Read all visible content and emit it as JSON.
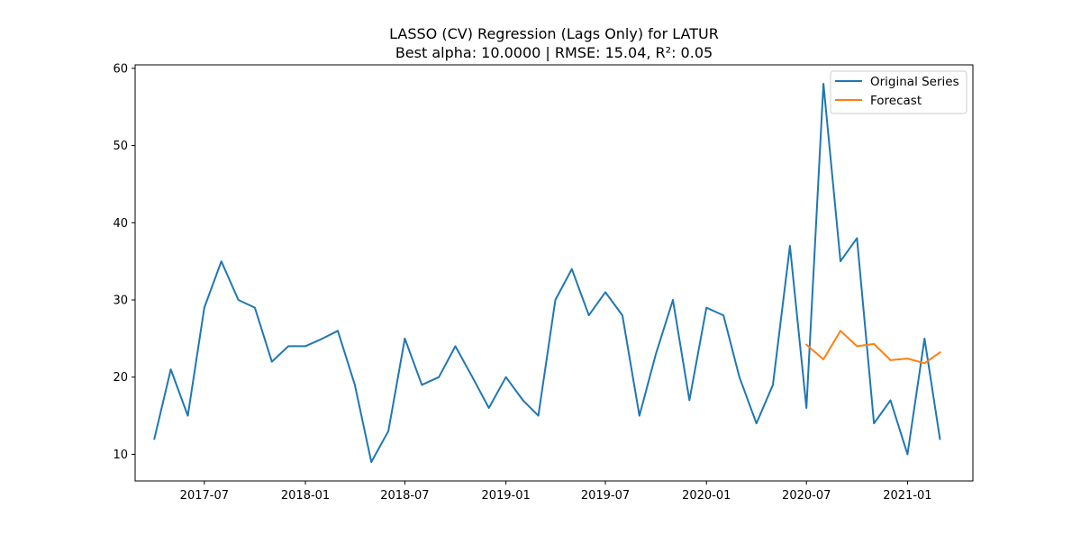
{
  "chart_data": {
    "type": "line",
    "title": "LASSO (CV) Regression (Lags Only) for LATUR",
    "subtitle": "Best alpha: 10.0000 | RMSE: 15.04, R²: 0.05",
    "xlabel": "",
    "ylabel": "",
    "ylim": [
      6.55,
      60.45
    ],
    "xlim": [
      "2017-02-25",
      "2021-04-30"
    ],
    "grid": false,
    "legend_position": "top-right",
    "x_ticks": [
      "2017-07",
      "2018-01",
      "2018-07",
      "2019-01",
      "2019-07",
      "2020-01",
      "2020-07",
      "2021-01"
    ],
    "y_ticks": [
      10,
      20,
      30,
      40,
      50,
      60
    ],
    "series": [
      {
        "name": "Original Series",
        "color": "#1f77b4",
        "x": [
          "2017-04",
          "2017-05",
          "2017-06",
          "2017-07",
          "2017-08",
          "2017-09",
          "2017-10",
          "2017-11",
          "2017-12",
          "2018-01",
          "2018-02",
          "2018-03",
          "2018-04",
          "2018-05",
          "2018-06",
          "2018-07",
          "2018-08",
          "2018-09",
          "2018-10",
          "2018-11",
          "2018-12",
          "2019-01",
          "2019-02",
          "2019-03",
          "2019-04",
          "2019-05",
          "2019-06",
          "2019-07",
          "2019-08",
          "2019-09",
          "2019-10",
          "2019-11",
          "2019-12",
          "2020-01",
          "2020-02",
          "2020-03",
          "2020-04",
          "2020-05",
          "2020-06",
          "2020-07",
          "2020-08",
          "2020-09",
          "2020-10",
          "2020-11",
          "2020-12",
          "2021-01",
          "2021-02",
          "2021-03"
        ],
        "values": [
          12,
          21,
          15,
          29,
          35,
          30,
          29,
          22,
          24,
          24,
          25,
          26,
          19,
          9,
          13,
          25,
          19,
          20,
          24,
          20,
          16,
          20,
          17,
          15,
          30,
          34,
          28,
          31,
          28,
          15,
          23,
          30,
          17,
          29,
          28,
          20,
          14,
          19,
          37,
          16,
          58,
          35,
          38,
          14,
          17,
          10,
          25,
          12
        ]
      },
      {
        "name": "Forecast",
        "color": "#ff7f0e",
        "x": [
          "2020-07",
          "2020-08",
          "2020-09",
          "2020-10",
          "2020-11",
          "2020-12",
          "2021-01",
          "2021-02",
          "2021-03"
        ],
        "values": [
          24.2,
          22.3,
          26.0,
          24.0,
          24.3,
          22.2,
          22.4,
          21.8,
          23.2
        ]
      }
    ]
  }
}
